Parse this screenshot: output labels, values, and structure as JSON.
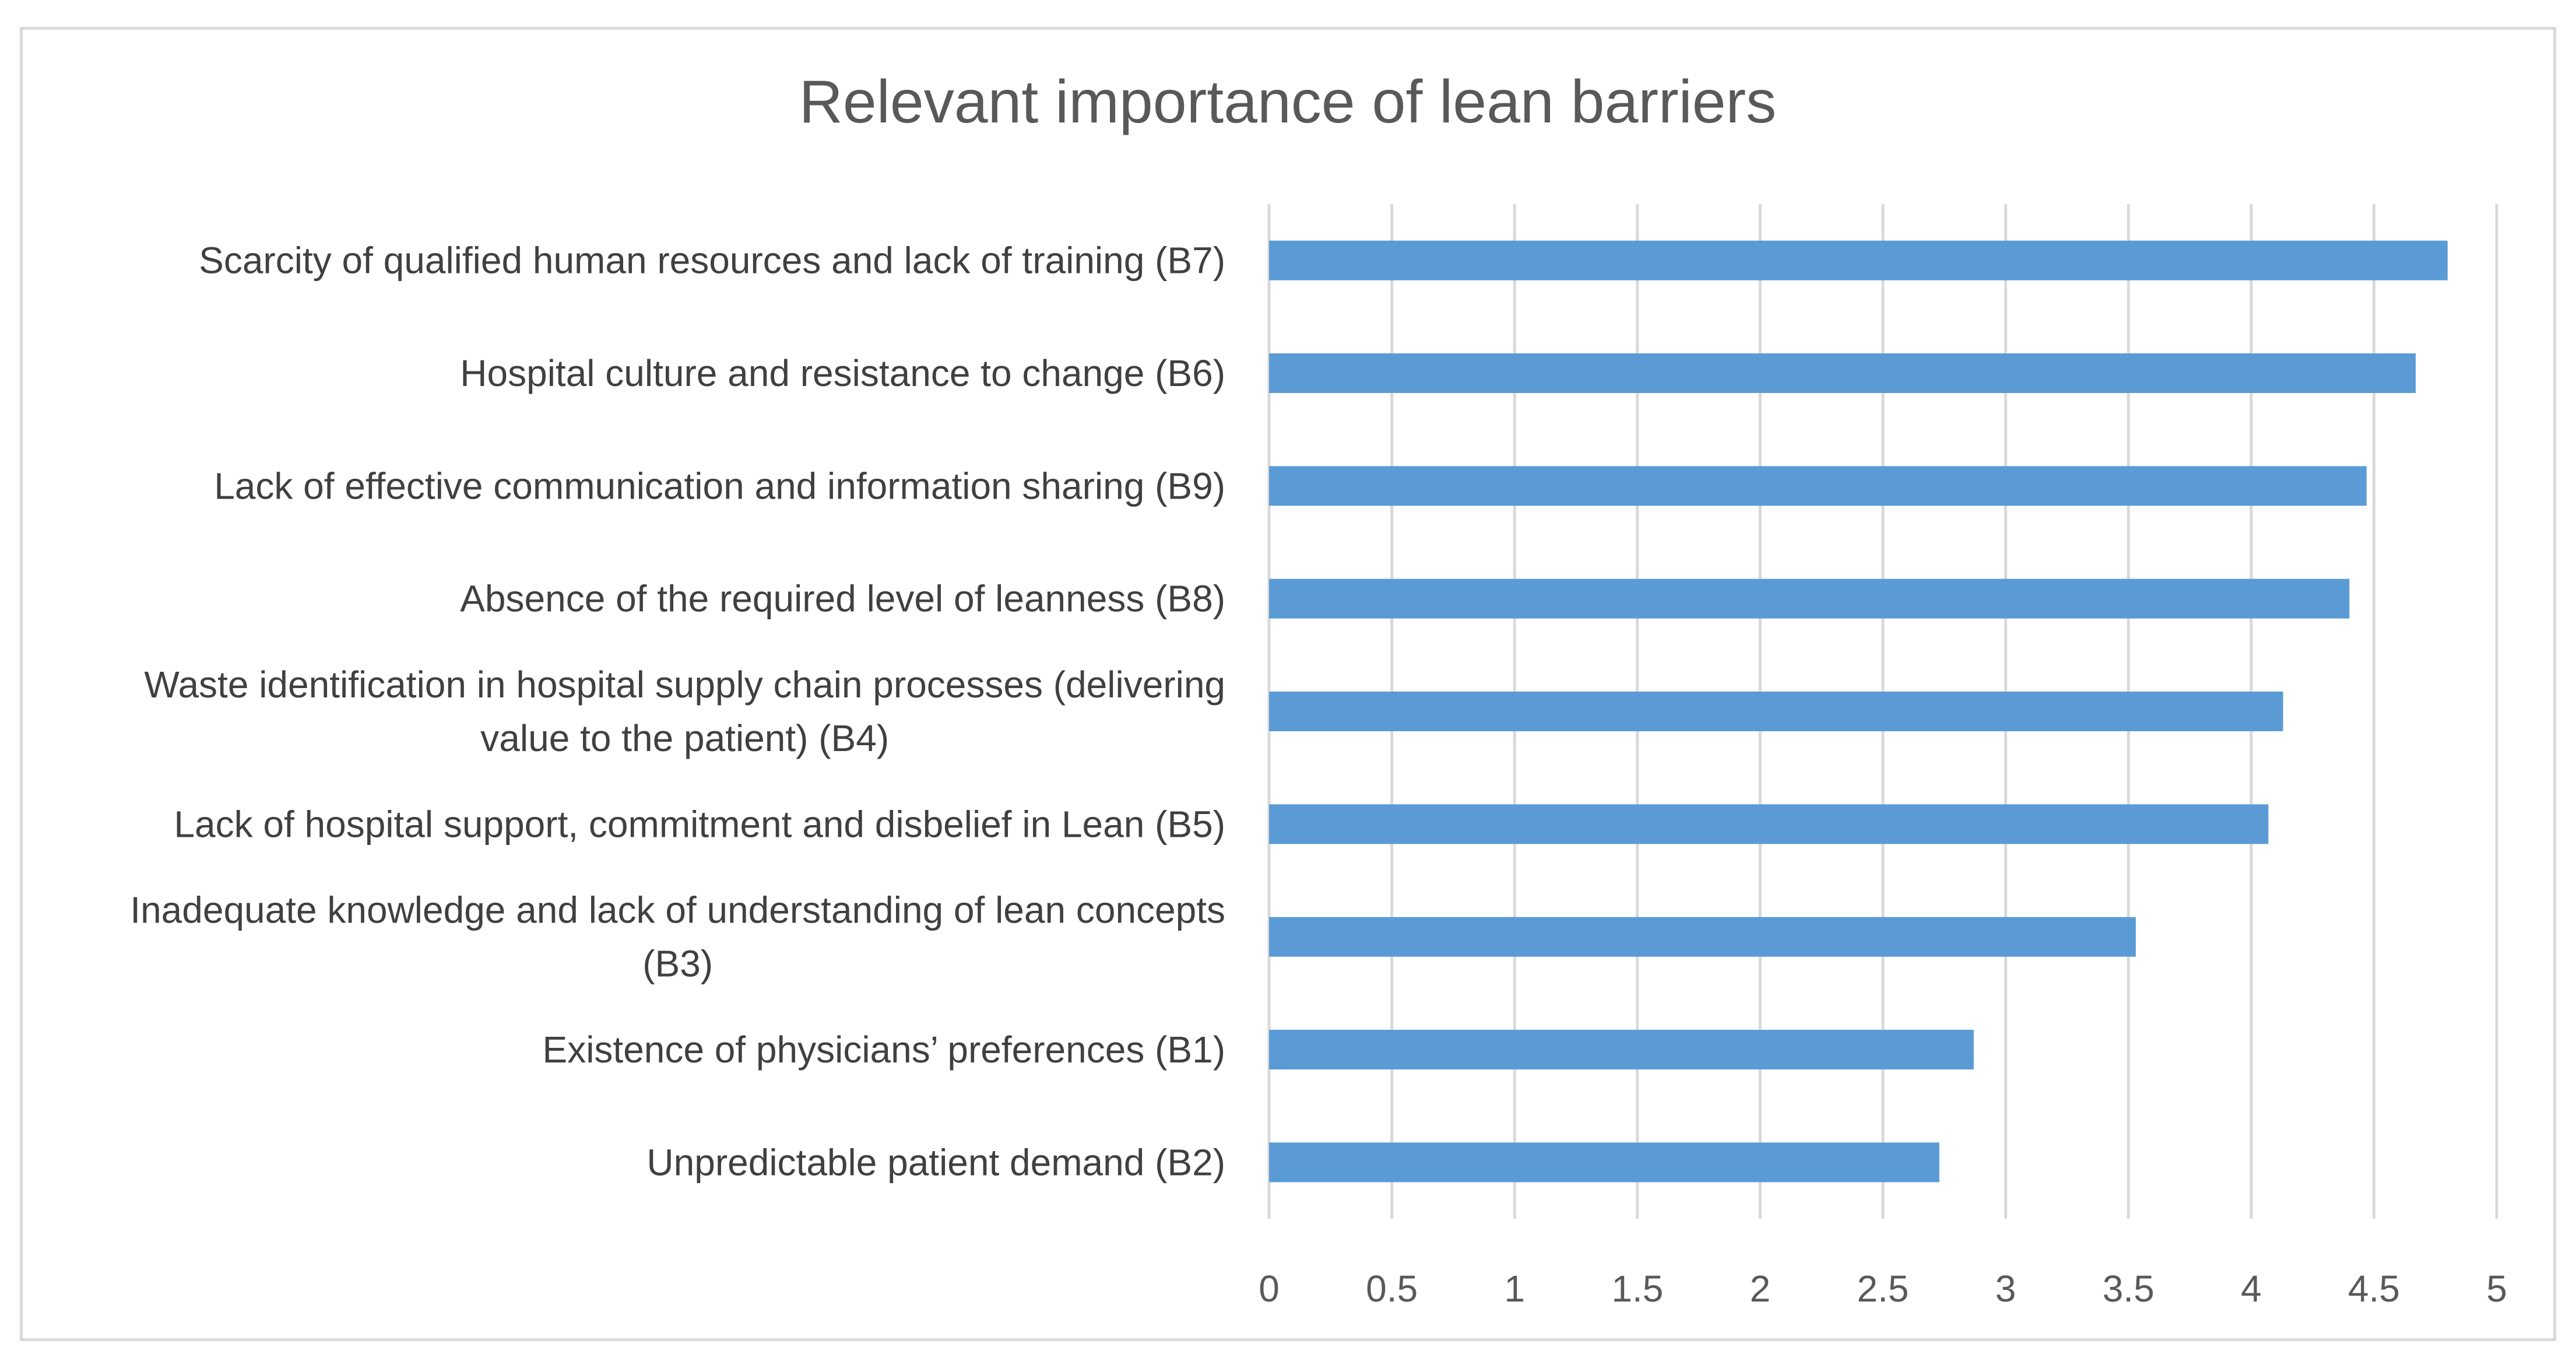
{
  "chart_data": {
    "type": "bar",
    "orientation": "horizontal",
    "title": "Relevant importance of lean barriers",
    "xlabel": "",
    "ylabel": "",
    "xlim": [
      0,
      5
    ],
    "ticks": [
      "0",
      "0.5",
      "1",
      "1.5",
      "2",
      "2.5",
      "3",
      "3.5",
      "4",
      "4.5",
      "5"
    ],
    "tick_values": [
      0,
      0.5,
      1,
      1.5,
      2,
      2.5,
      3,
      3.5,
      4,
      4.5,
      5
    ],
    "grid": true,
    "legend": "none",
    "bar_color": "#5b9bd5",
    "categories": [
      [
        "Scarcity of qualified human resources and lack of training (B7)"
      ],
      [
        "Hospital culture and resistance to change (B6)"
      ],
      [
        "Lack of effective communication and information sharing (B9)"
      ],
      [
        "Absence of the required level of leanness (B8)"
      ],
      [
        "Waste identification in hospital supply chain processes (delivering",
        "value to the patient) (B4)"
      ],
      [
        "Lack of hospital support, commitment and disbelief in Lean (B5)"
      ],
      [
        "Inadequate knowledge and lack of understanding of lean concepts",
        "(B3)"
      ],
      [
        "Existence of physicians’ preferences (B1)"
      ],
      [
        "Unpredictable patient demand (B2)"
      ]
    ],
    "values": [
      4.8,
      4.67,
      4.47,
      4.4,
      4.13,
      4.07,
      3.53,
      2.87,
      2.73
    ]
  }
}
